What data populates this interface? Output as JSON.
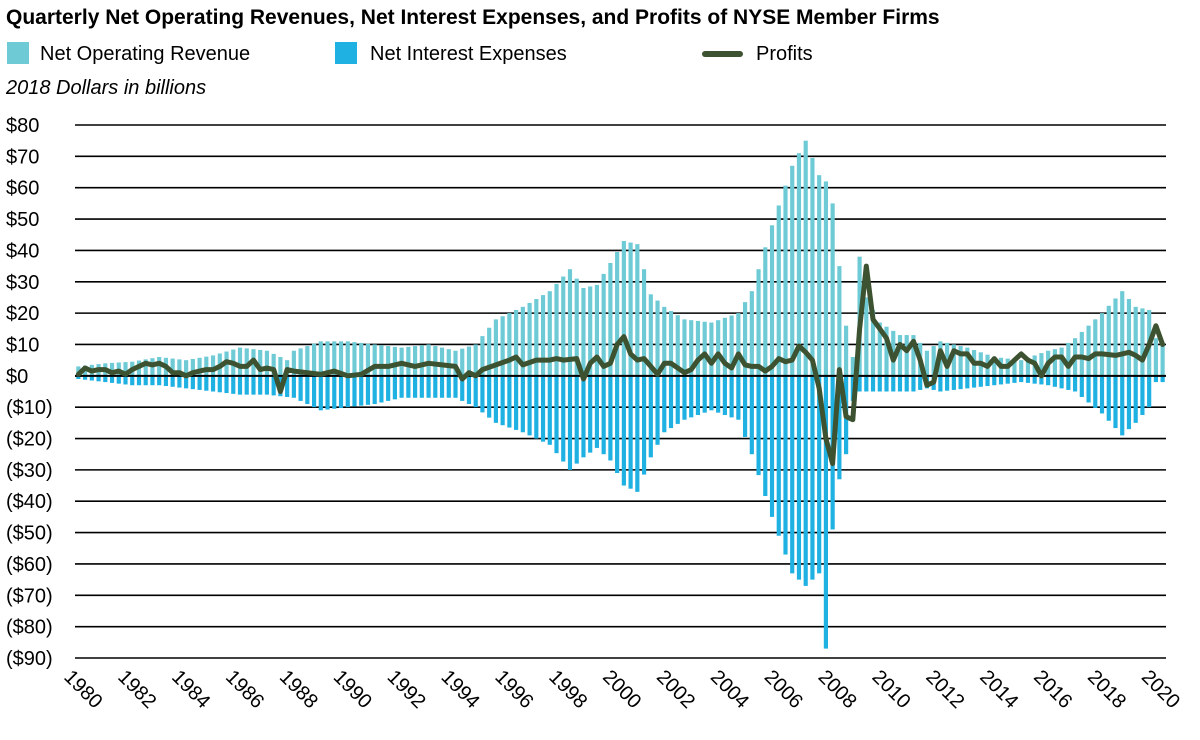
{
  "chart_data": {
    "type": "bar",
    "title": "Quarterly Net Operating Revenues, Net Interest Expenses, and Profits of NYSE Member Firms",
    "subtitle": "2018 Dollars in billions",
    "legend": {
      "position": "top",
      "entries": [
        "Net Operating Revenue",
        "Net Interest Expenses",
        "Profits"
      ]
    },
    "colors": {
      "revenue": "#6ecbd6",
      "interest": "#1fb1e2",
      "profits": "#3c5230",
      "grid": "#000000"
    },
    "ylim": [
      -90,
      80
    ],
    "yticks": [
      80,
      70,
      60,
      50,
      40,
      30,
      20,
      10,
      0,
      -10,
      -20,
      -30,
      -40,
      -50,
      -60,
      -70,
      -80,
      -90
    ],
    "ytick_labels": [
      "$80",
      "$70",
      "$60",
      "$50",
      "$40",
      "$30",
      "$20",
      "$10",
      "$0",
      "($10)",
      "($20)",
      "($30)",
      "($40)",
      "($50)",
      "($60)",
      "($70)",
      "($80)",
      "($90)"
    ],
    "xrange": [
      1980,
      2020.5
    ],
    "xticks": [
      "1980",
      "1982",
      "1984",
      "1986",
      "1988",
      "1990",
      "1992",
      "1994",
      "1996",
      "1998",
      "2000",
      "2002",
      "2004",
      "2006",
      "2008",
      "2010",
      "2012",
      "2014",
      "2016",
      "2018",
      "2020"
    ],
    "quarters_start": "1980 Q1",
    "revenue_keypoints": [
      [
        1980,
        3
      ],
      [
        1981,
        4
      ],
      [
        1982,
        4.5
      ],
      [
        1983,
        6
      ],
      [
        1984,
        5
      ],
      [
        1985,
        6.5
      ],
      [
        1986,
        9
      ],
      [
        1987,
        8
      ],
      [
        1987.75,
        5
      ],
      [
        1988,
        8
      ],
      [
        1989,
        11
      ],
      [
        1990,
        11
      ],
      [
        1991,
        10
      ],
      [
        1992,
        9
      ],
      [
        1993,
        10
      ],
      [
        1994,
        8
      ],
      [
        1994.75,
        10
      ],
      [
        1995.5,
        18
      ],
      [
        1996.5,
        22
      ],
      [
        1997.5,
        27
      ],
      [
        1998.25,
        34
      ],
      [
        1998.75,
        28
      ],
      [
        1999.25,
        29
      ],
      [
        1999.75,
        36
      ],
      [
        2000.25,
        43
      ],
      [
        2000.75,
        42
      ],
      [
        2001.25,
        26
      ],
      [
        2001.75,
        22
      ],
      [
        2002.5,
        18
      ],
      [
        2003.5,
        17
      ],
      [
        2004.5,
        20
      ],
      [
        2005,
        27
      ],
      [
        2005.75,
        48
      ],
      [
        2006.5,
        67
      ],
      [
        2007,
        75
      ],
      [
        2007.5,
        64
      ],
      [
        2007.75,
        62
      ],
      [
        2008,
        55
      ],
      [
        2008.25,
        35
      ],
      [
        2008.5,
        16
      ],
      [
        2008.75,
        6
      ],
      [
        2009,
        38
      ],
      [
        2009.25,
        25
      ],
      [
        2009.75,
        17
      ],
      [
        2010.5,
        13
      ],
      [
        2011,
        13
      ],
      [
        2011.5,
        8
      ],
      [
        2012,
        11
      ],
      [
        2013,
        9
      ],
      [
        2014,
        6
      ],
      [
        2015,
        5
      ],
      [
        2016,
        8
      ],
      [
        2016.5,
        9
      ],
      [
        2017,
        12
      ],
      [
        2018,
        20
      ],
      [
        2018.75,
        27
      ],
      [
        2019.25,
        22
      ],
      [
        2019.75,
        21
      ],
      [
        2020,
        12
      ],
      [
        2020.25,
        10
      ]
    ],
    "interest_keypoints": [
      [
        1980,
        -1
      ],
      [
        1981,
        -2
      ],
      [
        1982,
        -3
      ],
      [
        1983,
        -3
      ],
      [
        1984,
        -4
      ],
      [
        1985,
        -5
      ],
      [
        1986,
        -6
      ],
      [
        1987,
        -6
      ],
      [
        1988,
        -7
      ],
      [
        1989,
        -11
      ],
      [
        1990,
        -10
      ],
      [
        1991,
        -9
      ],
      [
        1992,
        -7
      ],
      [
        1993,
        -7
      ],
      [
        1994,
        -7
      ],
      [
        1994.75,
        -10
      ],
      [
        1995.5,
        -15
      ],
      [
        1996.5,
        -18
      ],
      [
        1997.5,
        -22
      ],
      [
        1998.25,
        -30
      ],
      [
        1998.75,
        -26
      ],
      [
        1999.25,
        -23
      ],
      [
        1999.75,
        -27
      ],
      [
        2000.25,
        -35
      ],
      [
        2000.75,
        -37
      ],
      [
        2001.25,
        -26
      ],
      [
        2001.75,
        -18
      ],
      [
        2002.5,
        -14
      ],
      [
        2003.5,
        -11
      ],
      [
        2004.5,
        -14
      ],
      [
        2005,
        -25
      ],
      [
        2005.75,
        -45
      ],
      [
        2006.5,
        -63
      ],
      [
        2007,
        -67
      ],
      [
        2007.5,
        -63
      ],
      [
        2007.75,
        -87
      ],
      [
        2008,
        -49
      ],
      [
        2008.25,
        -33
      ],
      [
        2008.5,
        -25
      ],
      [
        2008.75,
        -8
      ],
      [
        2009,
        -5
      ],
      [
        2009.75,
        -5
      ],
      [
        2010.5,
        -5
      ],
      [
        2011,
        -5
      ],
      [
        2011.5,
        -4
      ],
      [
        2012,
        -5
      ],
      [
        2013,
        -4
      ],
      [
        2014,
        -3
      ],
      [
        2015,
        -2
      ],
      [
        2016,
        -3
      ],
      [
        2016.5,
        -4
      ],
      [
        2017,
        -5
      ],
      [
        2018,
        -12
      ],
      [
        2018.75,
        -19
      ],
      [
        2019.25,
        -15
      ],
      [
        2019.75,
        -10
      ],
      [
        2020,
        -2
      ],
      [
        2020.25,
        -2
      ]
    ],
    "profits": [
      [
        1980,
        0.5
      ],
      [
        1980.25,
        2.5
      ],
      [
        1980.5,
        1.5
      ],
      [
        1980.75,
        2
      ],
      [
        1981,
        2
      ],
      [
        1981.25,
        1
      ],
      [
        1981.5,
        1.5
      ],
      [
        1981.75,
        0.5
      ],
      [
        1982,
        2
      ],
      [
        1982.25,
        3
      ],
      [
        1982.5,
        4
      ],
      [
        1982.75,
        3.5
      ],
      [
        1983,
        4
      ],
      [
        1983.25,
        3
      ],
      [
        1983.5,
        1
      ],
      [
        1983.75,
        1
      ],
      [
        1984,
        0
      ],
      [
        1984.25,
        1
      ],
      [
        1984.5,
        1.5
      ],
      [
        1984.75,
        2
      ],
      [
        1985,
        2
      ],
      [
        1985.25,
        3
      ],
      [
        1985.5,
        4.5
      ],
      [
        1985.75,
        4
      ],
      [
        1986,
        3
      ],
      [
        1986.25,
        3
      ],
      [
        1986.5,
        5
      ],
      [
        1986.75,
        2
      ],
      [
        1987,
        2.5
      ],
      [
        1987.25,
        2
      ],
      [
        1987.5,
        -5
      ],
      [
        1987.75,
        2
      ],
      [
        1988,
        1.5
      ],
      [
        1988.5,
        1
      ],
      [
        1989,
        0.5
      ],
      [
        1989.5,
        1.5
      ],
      [
        1990,
        0
      ],
      [
        1990.5,
        0.5
      ],
      [
        1991,
        3
      ],
      [
        1991.5,
        3
      ],
      [
        1992,
        4
      ],
      [
        1992.5,
        3
      ],
      [
        1993,
        4
      ],
      [
        1993.5,
        3.5
      ],
      [
        1994,
        3
      ],
      [
        1994.25,
        -1
      ],
      [
        1994.5,
        1
      ],
      [
        1994.75,
        0
      ],
      [
        1995,
        2
      ],
      [
        1995.5,
        3.5
      ],
      [
        1996,
        5
      ],
      [
        1996.25,
        6
      ],
      [
        1996.5,
        3.5
      ],
      [
        1997,
        5
      ],
      [
        1997.5,
        5
      ],
      [
        1997.75,
        5.5
      ],
      [
        1998,
        5
      ],
      [
        1998.5,
        5.5
      ],
      [
        1998.75,
        -1
      ],
      [
        1999,
        4
      ],
      [
        1999.25,
        6
      ],
      [
        1999.5,
        3
      ],
      [
        1999.75,
        4
      ],
      [
        2000,
        10
      ],
      [
        2000.25,
        12.5
      ],
      [
        2000.5,
        7
      ],
      [
        2000.75,
        5
      ],
      [
        2001,
        5.5
      ],
      [
        2001.25,
        3
      ],
      [
        2001.5,
        0.5
      ],
      [
        2001.75,
        4
      ],
      [
        2002,
        4
      ],
      [
        2002.5,
        1
      ],
      [
        2002.75,
        2
      ],
      [
        2003,
        5
      ],
      [
        2003.25,
        7
      ],
      [
        2003.5,
        4
      ],
      [
        2003.75,
        7
      ],
      [
        2004,
        4
      ],
      [
        2004.25,
        2.5
      ],
      [
        2004.5,
        7
      ],
      [
        2004.75,
        3.5
      ],
      [
        2005,
        3
      ],
      [
        2005.25,
        3
      ],
      [
        2005.5,
        1.5
      ],
      [
        2005.75,
        3
      ],
      [
        2006,
        5.5
      ],
      [
        2006.25,
        4.5
      ],
      [
        2006.5,
        5
      ],
      [
        2006.75,
        9.5
      ],
      [
        2007,
        7.5
      ],
      [
        2007.25,
        5
      ],
      [
        2007.5,
        -4
      ],
      [
        2007.75,
        -20
      ],
      [
        2008,
        -28
      ],
      [
        2008.25,
        2
      ],
      [
        2008.5,
        -13
      ],
      [
        2008.75,
        -14
      ],
      [
        2009,
        15
      ],
      [
        2009.25,
        35
      ],
      [
        2009.5,
        18
      ],
      [
        2009.75,
        15
      ],
      [
        2010,
        12
      ],
      [
        2010.25,
        5
      ],
      [
        2010.5,
        10
      ],
      [
        2010.75,
        8
      ],
      [
        2011,
        11
      ],
      [
        2011.25,
        5
      ],
      [
        2011.5,
        -3
      ],
      [
        2011.75,
        -2
      ],
      [
        2012,
        8
      ],
      [
        2012.25,
        3
      ],
      [
        2012.5,
        8
      ],
      [
        2012.75,
        7
      ],
      [
        2013,
        7
      ],
      [
        2013.25,
        4
      ],
      [
        2013.5,
        4
      ],
      [
        2013.75,
        3
      ],
      [
        2014,
        5.5
      ],
      [
        2014.25,
        3
      ],
      [
        2014.5,
        3
      ],
      [
        2014.75,
        5
      ],
      [
        2015,
        7
      ],
      [
        2015.25,
        5
      ],
      [
        2015.5,
        4
      ],
      [
        2015.75,
        0
      ],
      [
        2016,
        4
      ],
      [
        2016.25,
        6
      ],
      [
        2016.5,
        6
      ],
      [
        2016.75,
        3
      ],
      [
        2017,
        6
      ],
      [
        2017.25,
        6
      ],
      [
        2017.5,
        5.5
      ],
      [
        2017.75,
        7
      ],
      [
        2018,
        7
      ],
      [
        2018.5,
        6.5
      ],
      [
        2018.75,
        7
      ],
      [
        2019,
        7.5
      ],
      [
        2019.25,
        6.5
      ],
      [
        2019.5,
        5
      ],
      [
        2019.75,
        10
      ],
      [
        2020,
        16
      ],
      [
        2020.25,
        10
      ]
    ]
  }
}
